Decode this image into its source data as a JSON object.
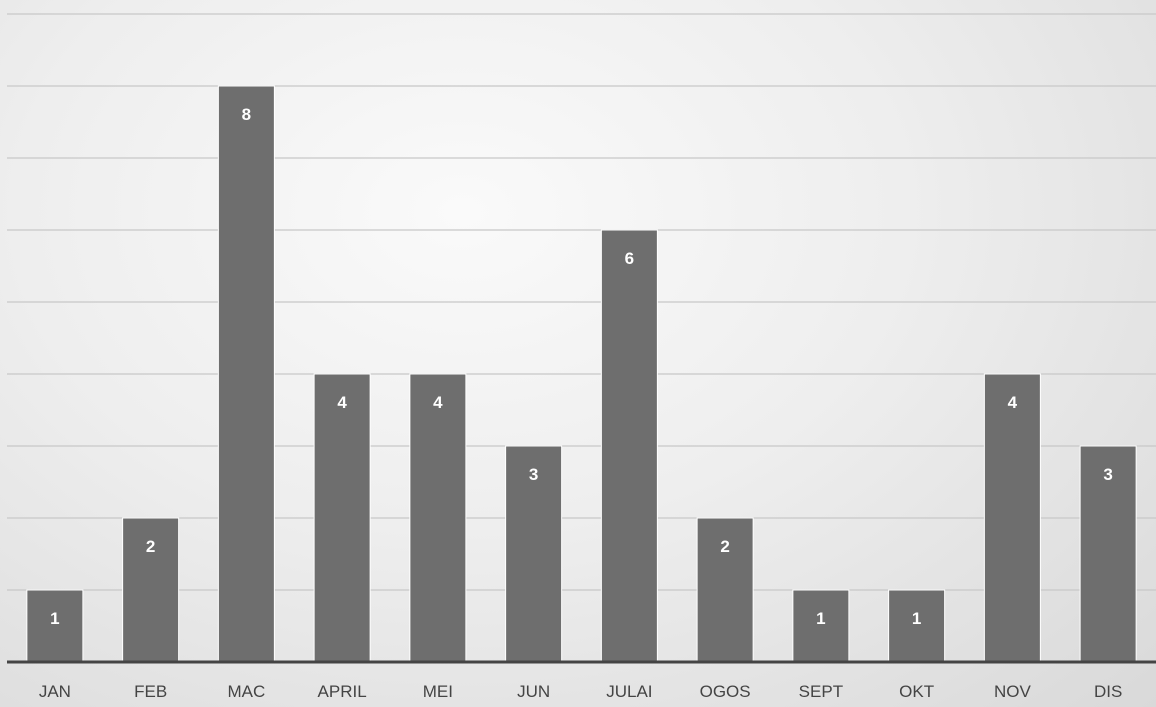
{
  "chart_data": {
    "type": "bar",
    "categories": [
      "JAN",
      "FEB",
      "MAC",
      "APRIL",
      "MEI",
      "JUN",
      "JULAI",
      "OGOS",
      "SEPT",
      "OKT",
      "NOV",
      "DIS"
    ],
    "values": [
      1,
      2,
      8,
      4,
      4,
      3,
      6,
      2,
      1,
      1,
      4,
      3
    ],
    "title": "",
    "xlabel": "",
    "ylabel": "",
    "ylim": [
      0,
      9
    ],
    "grid": true,
    "legend": "none",
    "data_labels": "inside-top",
    "colors": {
      "bar": "#6e6e6e",
      "bar_border": "#ffffff",
      "label": "#ffffff",
      "gridline": "#c8c8c8",
      "axis": "#444444",
      "tick_text": "#444444"
    }
  }
}
